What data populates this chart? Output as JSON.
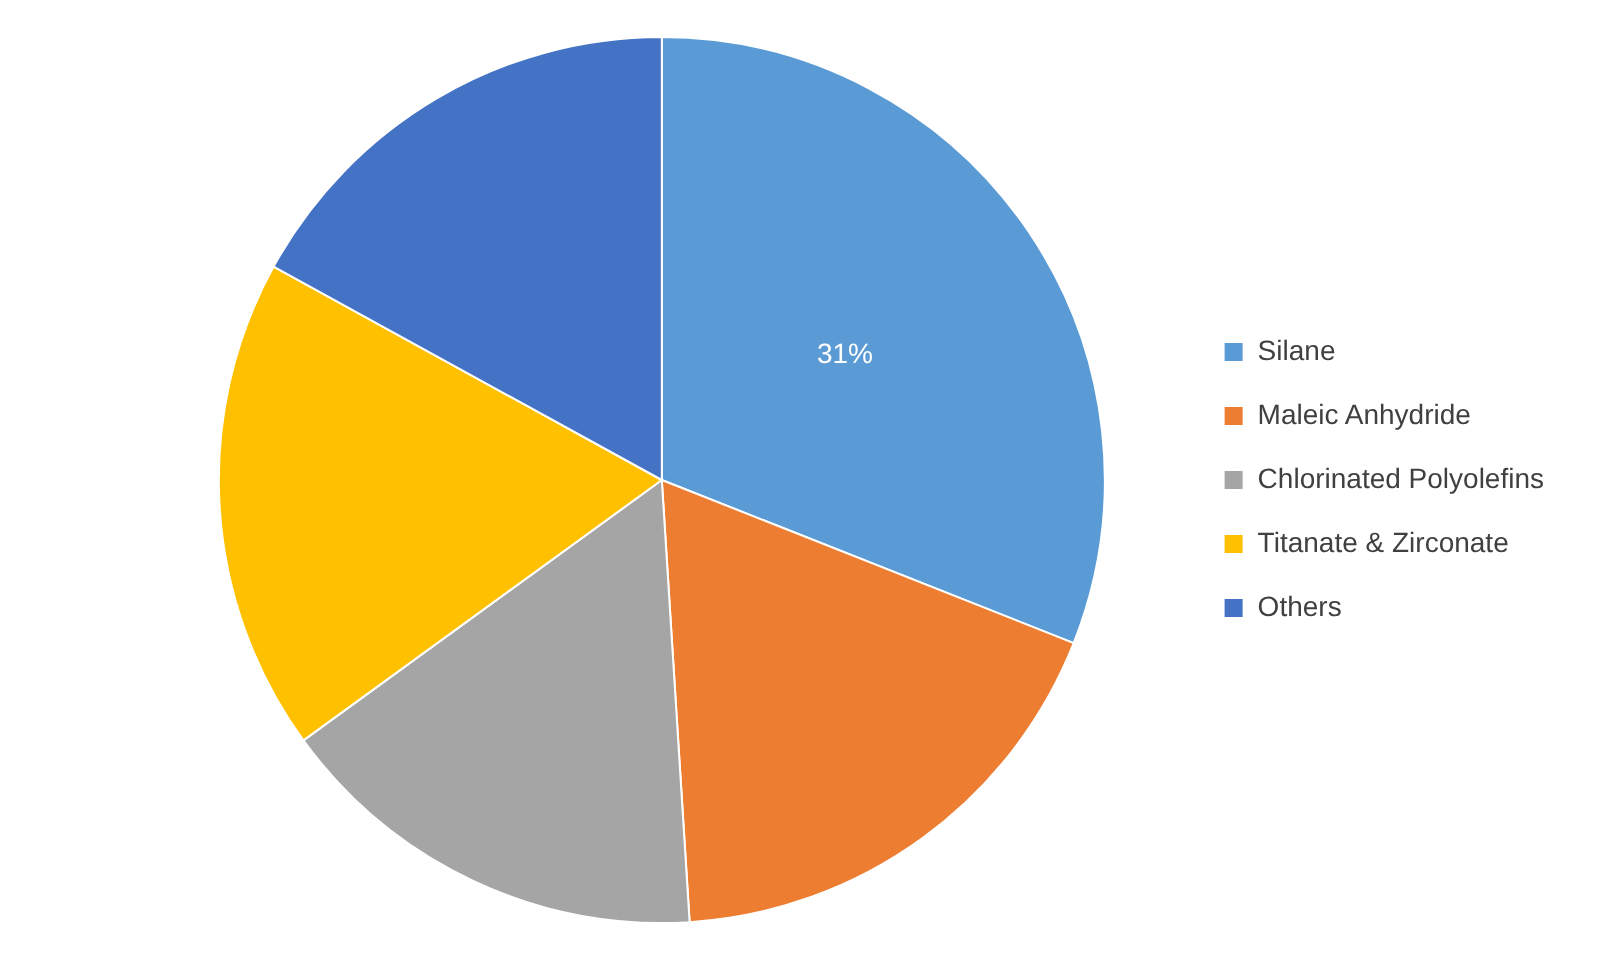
{
  "chart_data": {
    "type": "pie",
    "categories": [
      "Silane",
      "Maleic Anhydride",
      "Chlorinated Polyolefins",
      "Titanate & Zirconate",
      "Others"
    ],
    "values": [
      31,
      18,
      16,
      18,
      17
    ],
    "colors": [
      "#5b9bd5",
      "#ed7d31",
      "#a5a5a5",
      "#ffc000",
      "#4472c4"
    ],
    "value_labels": [
      "31%",
      null,
      null,
      null,
      null
    ],
    "legend": "right"
  }
}
